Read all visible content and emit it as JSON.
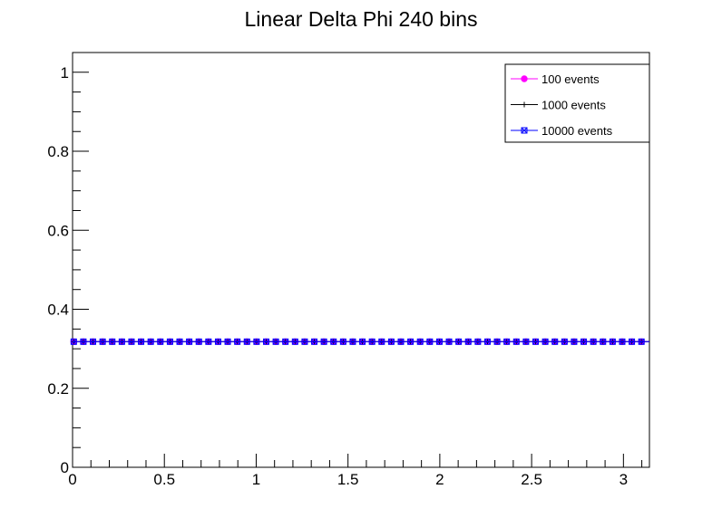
{
  "chart_data": {
    "type": "scatter",
    "title": "Linear Delta Phi 240 bins",
    "xlabel": "",
    "ylabel": "",
    "xlim": [
      0,
      3.14159
    ],
    "ylim": [
      0,
      1.05
    ],
    "x_ticks": [
      0,
      0.5,
      1,
      1.5,
      2,
      2.5,
      3
    ],
    "x_tick_labels": [
      "0",
      "0.5",
      "1",
      "1.5",
      "2",
      "2.5",
      "3"
    ],
    "y_ticks": [
      0,
      0.2,
      0.4,
      0.6,
      0.8,
      1
    ],
    "y_tick_labels": [
      "0",
      "0.2",
      "0.4",
      "0.6",
      "0.8",
      "1"
    ],
    "grid": false,
    "legend_position": "top-right",
    "series": [
      {
        "name": "100 events",
        "color": "#ff00ff",
        "marker": "circle",
        "value": 0.318
      },
      {
        "name": "1000 events",
        "color": "#000000",
        "marker": "cross",
        "value": 0.318
      },
      {
        "name": "10000 events",
        "color": "#0000ff",
        "marker": "open-square-x",
        "value": 0.318
      }
    ],
    "marker_x_start": 0.0065,
    "marker_x_step": 0.0524
  }
}
